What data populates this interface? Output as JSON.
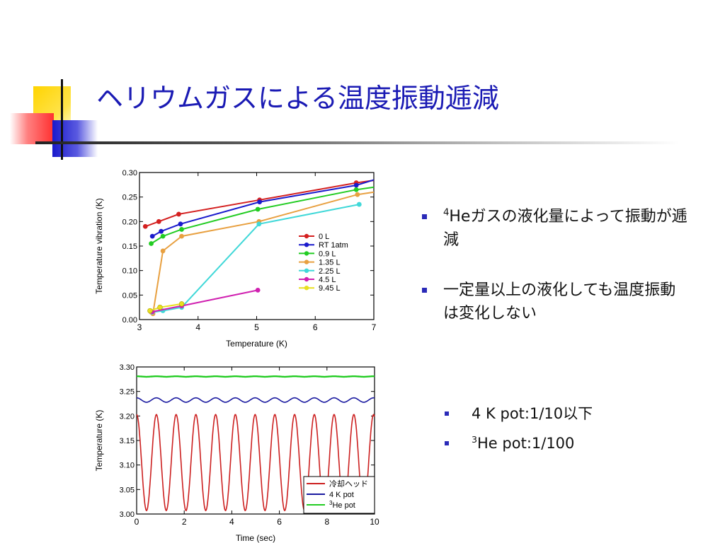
{
  "slide": {
    "title": "ヘリウムガスによる温度振動逓減"
  },
  "bullets": [
    {
      "sup": "4",
      "text": "Heガスの液化量によって振動が逓減"
    },
    {
      "sup": "",
      "text": "一定量以上の液化しても温度振動は変化しない"
    }
  ],
  "sub_bullets": [
    {
      "sup": "",
      "text": "4 K pot:1/10以下"
    },
    {
      "sup": "3",
      "text": "He pot:1/100"
    }
  ],
  "colors": {
    "title": "#1a1ab4",
    "bullet": "#2a2ab8"
  },
  "chart_data": [
    {
      "type": "line",
      "xlabel": "Temperature (K)",
      "ylabel": "Temperature vibration (K)",
      "xlim": [
        3,
        7
      ],
      "ylim": [
        0,
        0.3
      ],
      "xticks": [
        3,
        4,
        5,
        6,
        7
      ],
      "yticks": [
        0.0,
        0.05,
        0.1,
        0.15,
        0.2,
        0.25,
        0.3
      ],
      "ytick_labels": [
        "0.00",
        "0.05",
        "0.10",
        "0.15",
        "0.20",
        "0.25",
        "0.30"
      ],
      "legend_position": "lower-right",
      "series": [
        {
          "name": "0 L",
          "color": "#d42020",
          "x": [
            3.1,
            3.33,
            3.67,
            5.05,
            6.7,
            7.0
          ],
          "y": [
            0.19,
            0.2,
            0.215,
            0.244,
            0.279,
            0.284
          ]
        },
        {
          "name": "RT 1atm",
          "color": "#1a1acc",
          "x": [
            3.22,
            3.37,
            3.7,
            5.05,
            6.7,
            7.0
          ],
          "y": [
            0.17,
            0.18,
            0.195,
            0.24,
            0.274,
            0.285
          ]
        },
        {
          "name": "0.9 L",
          "color": "#22cc22",
          "x": [
            3.2,
            3.4,
            3.72,
            5.02,
            6.7,
            7.0
          ],
          "y": [
            0.155,
            0.17,
            0.184,
            0.225,
            0.265,
            0.27
          ]
        },
        {
          "name": "1.35 L",
          "color": "#e8a040",
          "x": [
            3.2,
            3.23,
            3.4,
            3.72,
            5.04,
            6.72,
            7.0
          ],
          "y": [
            0.015,
            0.012,
            0.14,
            0.17,
            0.2,
            0.255,
            0.26
          ]
        },
        {
          "name": "2.25 L",
          "color": "#40d8d8",
          "x": [
            3.22,
            3.4,
            3.72,
            5.04,
            6.75
          ],
          "y": [
            0.015,
            0.018,
            0.025,
            0.195,
            0.235
          ]
        },
        {
          "name": "4.5 L",
          "color": "#d020b0",
          "x": [
            3.22,
            3.72,
            5.02
          ],
          "y": [
            0.016,
            0.028,
            0.06
          ]
        },
        {
          "name": "9.45 L",
          "color": "#e8e020",
          "x": [
            3.18,
            3.35,
            3.72
          ],
          "y": [
            0.018,
            0.025,
            0.032
          ]
        }
      ]
    },
    {
      "type": "line",
      "xlabel": "Time (sec)",
      "ylabel": "Temperature (K)",
      "xlim": [
        0,
        10
      ],
      "ylim": [
        3.0,
        3.3
      ],
      "xticks": [
        0,
        2,
        4,
        6,
        8,
        10
      ],
      "yticks": [
        3.0,
        3.05,
        3.1,
        3.15,
        3.2,
        3.25,
        3.3
      ],
      "ytick_labels": [
        "3.00",
        "3.05",
        "3.10",
        "3.15",
        "3.20",
        "3.25",
        "3.30"
      ],
      "legend_position": "lower-right",
      "series": [
        {
          "name": "冷却ヘッド",
          "sup": "",
          "color": "#cc2020",
          "baseline": 3.105,
          "amplitude": 0.098,
          "period": 0.83,
          "phase": 0.0
        },
        {
          "name": "4 K pot",
          "sup": "",
          "color": "#1a1aa0",
          "baseline": 3.2325,
          "amplitude": 0.0045,
          "period": 0.83,
          "phase": 0.0
        },
        {
          "name": "He pot",
          "sup": "3",
          "color": "#22cc22",
          "baseline": 3.2805,
          "amplitude": 0.0005,
          "period": 0.83,
          "phase": 0.0
        }
      ]
    }
  ]
}
